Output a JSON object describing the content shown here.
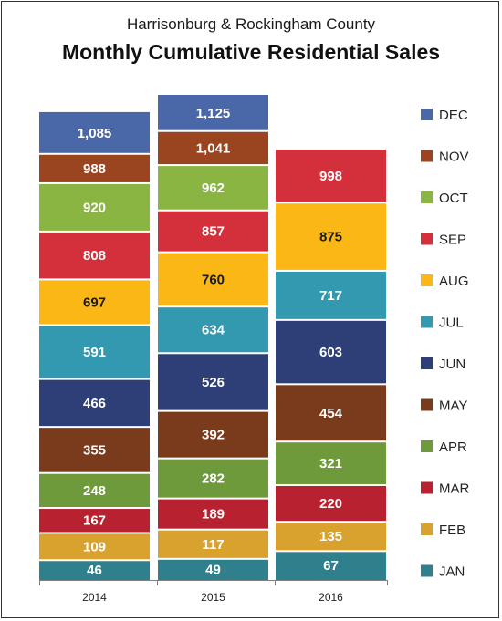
{
  "chart_data": {
    "type": "bar",
    "stacked": true,
    "subtitle": "Harrisonburg & Rockingham County",
    "title": "Monthly Cumulative Residential Sales",
    "categories": [
      "2014",
      "2015",
      "2016"
    ],
    "series": [
      {
        "name": "JAN",
        "color": "#2f7f8c",
        "values": [
          46,
          49,
          67
        ]
      },
      {
        "name": "FEB",
        "color": "#d9a22e",
        "values": [
          109,
          117,
          135
        ]
      },
      {
        "name": "MAR",
        "color": "#b82130",
        "values": [
          167,
          189,
          220
        ]
      },
      {
        "name": "APR",
        "color": "#6f9a3c",
        "values": [
          248,
          282,
          321
        ]
      },
      {
        "name": "MAY",
        "color": "#7a3a1c",
        "values": [
          355,
          392,
          454
        ]
      },
      {
        "name": "JUN",
        "color": "#2e3f77",
        "values": [
          466,
          526,
          603
        ]
      },
      {
        "name": "JUL",
        "color": "#3399b0",
        "values": [
          591,
          634,
          717
        ]
      },
      {
        "name": "AUG",
        "color": "#fbb716",
        "values": [
          697,
          760,
          875
        ]
      },
      {
        "name": "SEP",
        "color": "#d4303c",
        "values": [
          808,
          857,
          998
        ]
      },
      {
        "name": "OCT",
        "color": "#8bb543",
        "values": [
          920,
          962,
          null
        ]
      },
      {
        "name": "NOV",
        "color": "#9a4520",
        "values": [
          988,
          1041,
          null
        ]
      },
      {
        "name": "DEC",
        "color": "#4a67a8",
        "values": [
          1085,
          1125,
          null
        ]
      }
    ],
    "value_labels": [
      [
        "46",
        "109",
        "167",
        "248",
        "355",
        "466",
        "591",
        "697",
        "808",
        "920",
        "988",
        "1,085"
      ],
      [
        "49",
        "117",
        "189",
        "282",
        "392",
        "526",
        "634",
        "760",
        "857",
        "962",
        "1,041",
        "1,125"
      ],
      [
        "67",
        "135",
        "220",
        "321",
        "454",
        "603",
        "717",
        "875",
        "998",
        null,
        null,
        null
      ]
    ],
    "dark_label_series": [
      "AUG"
    ],
    "legend": {
      "position": "right",
      "order": "reverse"
    },
    "grid": false
  }
}
